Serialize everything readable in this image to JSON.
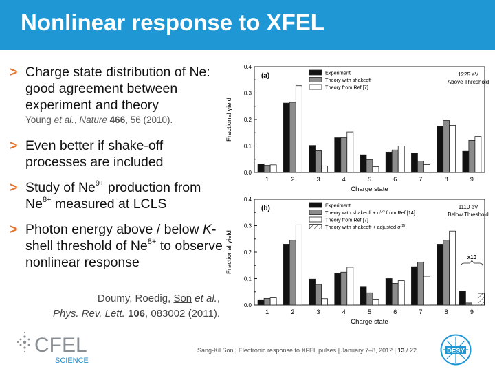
{
  "title": "Nonlinear response to XFEL",
  "bullets": [
    {
      "text": "Charge state distribution of Ne: good agreement between experiment and theory",
      "ref": {
        "authors": "Young",
        "etal": "et al.",
        "journal": "Nature",
        "volume": "466",
        "rest": ", 56 (2010)."
      }
    },
    {
      "text": "Even better if shake-off processes are included"
    },
    {
      "parts": [
        "Study of Ne",
        "9+",
        " production from Ne",
        "8+",
        " measured at LCLS"
      ]
    },
    {
      "parts": [
        "Photon energy above / below ",
        "K",
        "-shell threshold of Ne",
        "8+",
        " to observe nonlinear response"
      ]
    }
  ],
  "citation": {
    "line1_a": "Doumy, Roedig, ",
    "line1_son": "Son",
    "line1_etal": " et al.",
    "line1_comma": ",",
    "line2_journal": "Phys. Rev. Lett.",
    "line2_vol": "106",
    "line2_rest": ", 083002 (2011)."
  },
  "footer": {
    "author": "Sang-Kil Son",
    "sep": "|",
    "talk": "Electronic response to XFEL pulses",
    "date": "January 7–8, 2012",
    "page": "13",
    "total": "/ 22",
    "cfel_logo": "CFEL",
    "cfel_sub": "SCIENCE",
    "desy_logo": "DESY"
  },
  "colors": {
    "accent": "#1e97d4",
    "bullet_arrow": "#e9742b",
    "bar_black": "#111111",
    "bar_gray": "#8c8c8c",
    "bar_white": "#ffffff"
  },
  "chart_data": [
    {
      "type": "bar",
      "panel": "(a)",
      "annotation": [
        "1225 eV",
        "Above Threshold"
      ],
      "categories": [
        "1",
        "2",
        "3",
        "4",
        "5",
        "6",
        "7",
        "8",
        "9"
      ],
      "xlabel": "Charge state",
      "ylabel": "Fractional yield",
      "ylim": [
        0,
        0.4
      ],
      "yticks": [
        "0.0",
        "0.1",
        "0.2",
        "0.3",
        "0.4"
      ],
      "legend_position": "top",
      "series": [
        {
          "name": "Experiment",
          "style": "black",
          "values": [
            0.032,
            0.262,
            0.102,
            0.131,
            0.067,
            0.077,
            0.073,
            0.174,
            0.08
          ]
        },
        {
          "name": "Theory with shakeoff",
          "style": "gray",
          "values": [
            0.027,
            0.265,
            0.082,
            0.131,
            0.048,
            0.085,
            0.043,
            0.196,
            0.121
          ]
        },
        {
          "name": "Theory from Ref [7]",
          "style": "white",
          "values": [
            0.029,
            0.328,
            0.025,
            0.153,
            0.022,
            0.1,
            0.03,
            0.178,
            0.136
          ]
        }
      ]
    },
    {
      "type": "bar",
      "panel": "(b)",
      "annotation": [
        "1110 eV",
        "Below Threshold"
      ],
      "categories": [
        "1",
        "2",
        "3",
        "4",
        "5",
        "6",
        "7",
        "8",
        "9"
      ],
      "xlabel": "Charge state",
      "ylabel": "Fractional yield",
      "ylim": [
        0,
        0.4
      ],
      "yticks": [
        "0.0",
        "0.1",
        "0.2",
        "0.3",
        "0.4"
      ],
      "legend_position": "top",
      "x10_label": "x10",
      "series": [
        {
          "name": "Experiment",
          "style": "black",
          "values": [
            0.02,
            0.23,
            0.098,
            0.119,
            0.068,
            0.1,
            0.145,
            0.23,
            0.052
          ]
        },
        {
          "name": "Theory with shakeoff + σ(2) from Ref [14]",
          "legend_parts": [
            "Theory with shakeoff + σ",
            "(2)",
            " from Ref [14]"
          ],
          "style": "gray",
          "values": [
            0.025,
            0.245,
            0.078,
            0.124,
            0.046,
            0.082,
            0.162,
            0.245,
            0.008
          ]
        },
        {
          "name": "Theory from Ref [7]",
          "style": "white",
          "values": [
            0.027,
            0.303,
            0.024,
            0.143,
            0.022,
            0.092,
            0.109,
            0.28,
            0.004
          ]
        },
        {
          "name": "Theory with shakeoff + adjusted σ(2)",
          "legend_parts": [
            "Theory with shakeoff + adjusted σ",
            "(2)",
            ""
          ],
          "style": "hatch",
          "values": [
            null,
            null,
            null,
            null,
            null,
            null,
            null,
            null,
            0.044
          ]
        }
      ]
    }
  ]
}
